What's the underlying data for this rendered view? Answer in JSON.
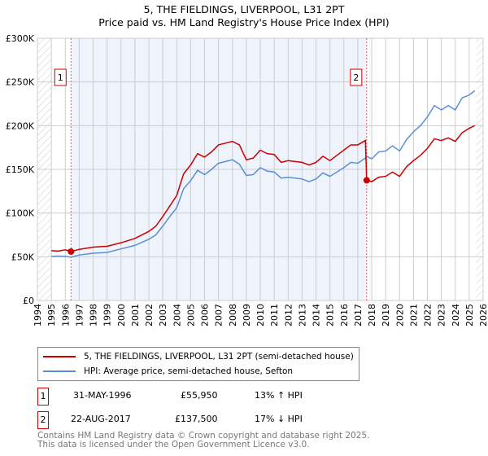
{
  "chart_data": {
    "type": "line",
    "title": "5, THE FIELDINGS, LIVERPOOL, L31 2PT",
    "subtitle": "Price paid vs. HM Land Registry's House Price Index (HPI)",
    "xlim": [
      1994,
      2026
    ],
    "ylim": [
      0,
      300000
    ],
    "x_ticks": [
      "1994",
      "1995",
      "1996",
      "1997",
      "1998",
      "1999",
      "2000",
      "2001",
      "2002",
      "2003",
      "2004",
      "2005",
      "2006",
      "2007",
      "2008",
      "2009",
      "2010",
      "2011",
      "2012",
      "2013",
      "2014",
      "2015",
      "2016",
      "2017",
      "2018",
      "2019",
      "2020",
      "2021",
      "2022",
      "2023",
      "2024",
      "2025",
      "2026"
    ],
    "y_ticks": [
      {
        "v": 0,
        "label": "£0"
      },
      {
        "v": 50000,
        "label": "£50K"
      },
      {
        "v": 100000,
        "label": "£100K"
      },
      {
        "v": 150000,
        "label": "£150K"
      },
      {
        "v": 200000,
        "label": "£200K"
      },
      {
        "v": 250000,
        "label": "£250K"
      },
      {
        "v": 300000,
        "label": "£300K"
      }
    ],
    "grid": true,
    "series": [
      {
        "name": "5, THE FIELDINGS, LIVERPOOL, L31 2PT (semi-detached house)",
        "color": "#cc0000",
        "x": [
          1995,
          1995.5,
          1996,
          1996.41,
          1997,
          1998,
          1999,
          2000,
          2001,
          2002,
          2002.5,
          2003,
          2003.5,
          2004,
          2004.5,
          2005,
          2005.5,
          2006,
          2006.5,
          2007,
          2007.5,
          2008,
          2008.5,
          2009,
          2009.5,
          2010,
          2010.5,
          2011,
          2011.5,
          2012,
          2012.5,
          2013,
          2013.5,
          2014,
          2014.5,
          2015,
          2015.5,
          2016,
          2016.5,
          2017,
          2017.55,
          2017.64,
          2018,
          2018.5,
          2019,
          2019.5,
          2020,
          2020.5,
          2021,
          2021.5,
          2022,
          2022.5,
          2023,
          2023.5,
          2024,
          2024.5,
          2025,
          2025.4
        ],
        "y": [
          57000,
          56500,
          58000,
          55950,
          58500,
          61000,
          62000,
          66000,
          71000,
          79000,
          85000,
          96000,
          108000,
          120000,
          145000,
          155000,
          168000,
          164000,
          170000,
          178000,
          180000,
          182000,
          178000,
          161000,
          163000,
          172000,
          168000,
          167000,
          158000,
          160000,
          159000,
          158000,
          155000,
          158000,
          165000,
          160000,
          166000,
          172000,
          178000,
          178000,
          183000,
          137500,
          136000,
          141000,
          142000,
          147000,
          142000,
          153000,
          160000,
          166000,
          174000,
          185000,
          183000,
          186000,
          182000,
          192000,
          197000,
          200000
        ]
      },
      {
        "name": "HPI: Average price, semi-detached house, Sefton",
        "color": "#5b8fd4",
        "x": [
          1995,
          1995.5,
          1996,
          1996.41,
          1997,
          1998,
          1999,
          2000,
          2001,
          2002,
          2002.5,
          2003,
          2003.5,
          2004,
          2004.5,
          2005,
          2005.5,
          2006,
          2006.5,
          2007,
          2007.5,
          2008,
          2008.5,
          2009,
          2009.5,
          2010,
          2010.5,
          2011,
          2011.5,
          2012,
          2012.5,
          2013,
          2013.5,
          2014,
          2014.5,
          2015,
          2015.5,
          2016,
          2016.5,
          2017,
          2017.55,
          2017.64,
          2018,
          2018.5,
          2019,
          2019.5,
          2020,
          2020.5,
          2021,
          2021.5,
          2022,
          2022.5,
          2023,
          2023.5,
          2024,
          2024.5,
          2025,
          2025.4
        ],
        "y": [
          50500,
          50800,
          50500,
          49500,
          52000,
          54000,
          55000,
          59000,
          63000,
          70000,
          75000,
          85000,
          96000,
          106000,
          128000,
          137000,
          149000,
          144000,
          150000,
          157000,
          159000,
          161000,
          156000,
          143000,
          144000,
          152000,
          148000,
          147000,
          140000,
          141000,
          140000,
          139000,
          136000,
          139000,
          146000,
          142000,
          147000,
          152000,
          158000,
          157000,
          163000,
          165000,
          162000,
          170000,
          171000,
          177000,
          171000,
          184000,
          193000,
          200000,
          210000,
          223000,
          218000,
          223000,
          218000,
          232000,
          235000,
          240000
        ]
      }
    ],
    "sales": [
      {
        "num": "1",
        "x": 1996.41,
        "date": "31-MAY-1996",
        "price": "£55,950",
        "value": 55950,
        "hpi": "13% ↑ HPI"
      },
      {
        "num": "2",
        "x": 2017.64,
        "date": "22-AUG-2017",
        "price": "£137,500",
        "value": 137500,
        "hpi": "17% ↓ HPI"
      }
    ],
    "hatch_before": 1995,
    "hatch_after": 2025.5,
    "legend_position": "below"
  },
  "footer": [
    "Contains HM Land Registry data © Crown copyright and database right 2025.",
    "This data is licensed under the Open Government Licence v3.0."
  ]
}
